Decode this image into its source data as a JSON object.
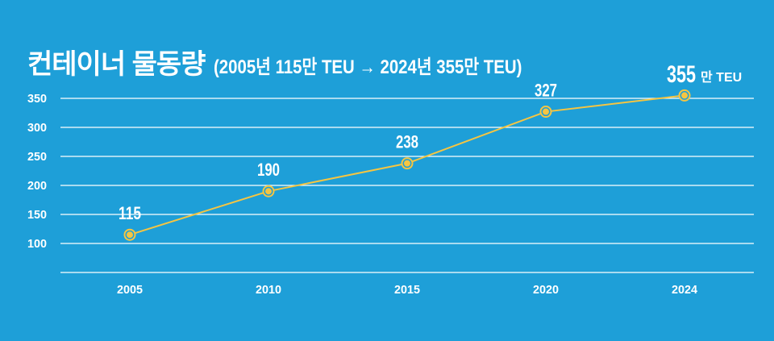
{
  "title": "컨테이너 물동량",
  "subtitle": "(2005년 115만 TEU → 2024년 355만 TEU)",
  "unit_label": "만 TEU",
  "colors": {
    "background": "#1e9fd8",
    "line": "#f5c542",
    "grid": "#ffffff",
    "text": "#ffffff"
  },
  "chart_data": {
    "type": "line",
    "title": "컨테이너 물동량",
    "categories": [
      "2005",
      "2010",
      "2015",
      "2020",
      "2024"
    ],
    "values": [
      115,
      190,
      238,
      327,
      355
    ],
    "data_labels": [
      "115",
      "190",
      "238",
      "327",
      "355"
    ],
    "y_ticks": [
      100,
      150,
      200,
      250,
      300,
      350
    ],
    "ylim": [
      50,
      350
    ],
    "grid": true,
    "legend": "none"
  }
}
